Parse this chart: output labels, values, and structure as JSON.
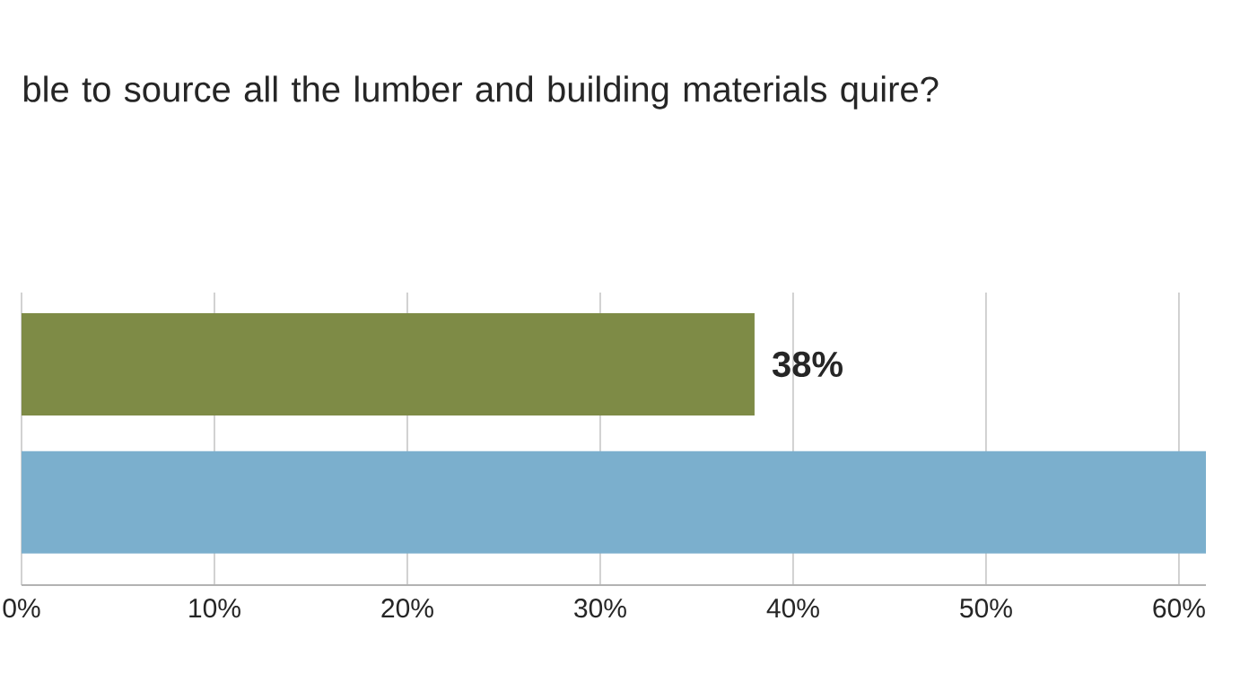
{
  "chart_data": {
    "type": "bar",
    "orientation": "horizontal",
    "title": "ble to source all the lumber and building materials quire?",
    "categories": [
      null,
      null
    ],
    "values": [
      38,
      61.4
    ],
    "colors": [
      "#7e8b46",
      "#7bafcd"
    ],
    "value_labels": [
      "38%",
      null
    ],
    "xlim": [
      0,
      61.4
    ],
    "xticks": [
      {
        "value": 0,
        "label": "0%"
      },
      {
        "value": 10,
        "label": "10%"
      },
      {
        "value": 20,
        "label": "20%"
      },
      {
        "value": 30,
        "label": "30%"
      },
      {
        "value": 40,
        "label": "40%"
      },
      {
        "value": 50,
        "label": "50%"
      },
      {
        "value": 60,
        "label": "60%"
      }
    ],
    "grid": "x"
  }
}
